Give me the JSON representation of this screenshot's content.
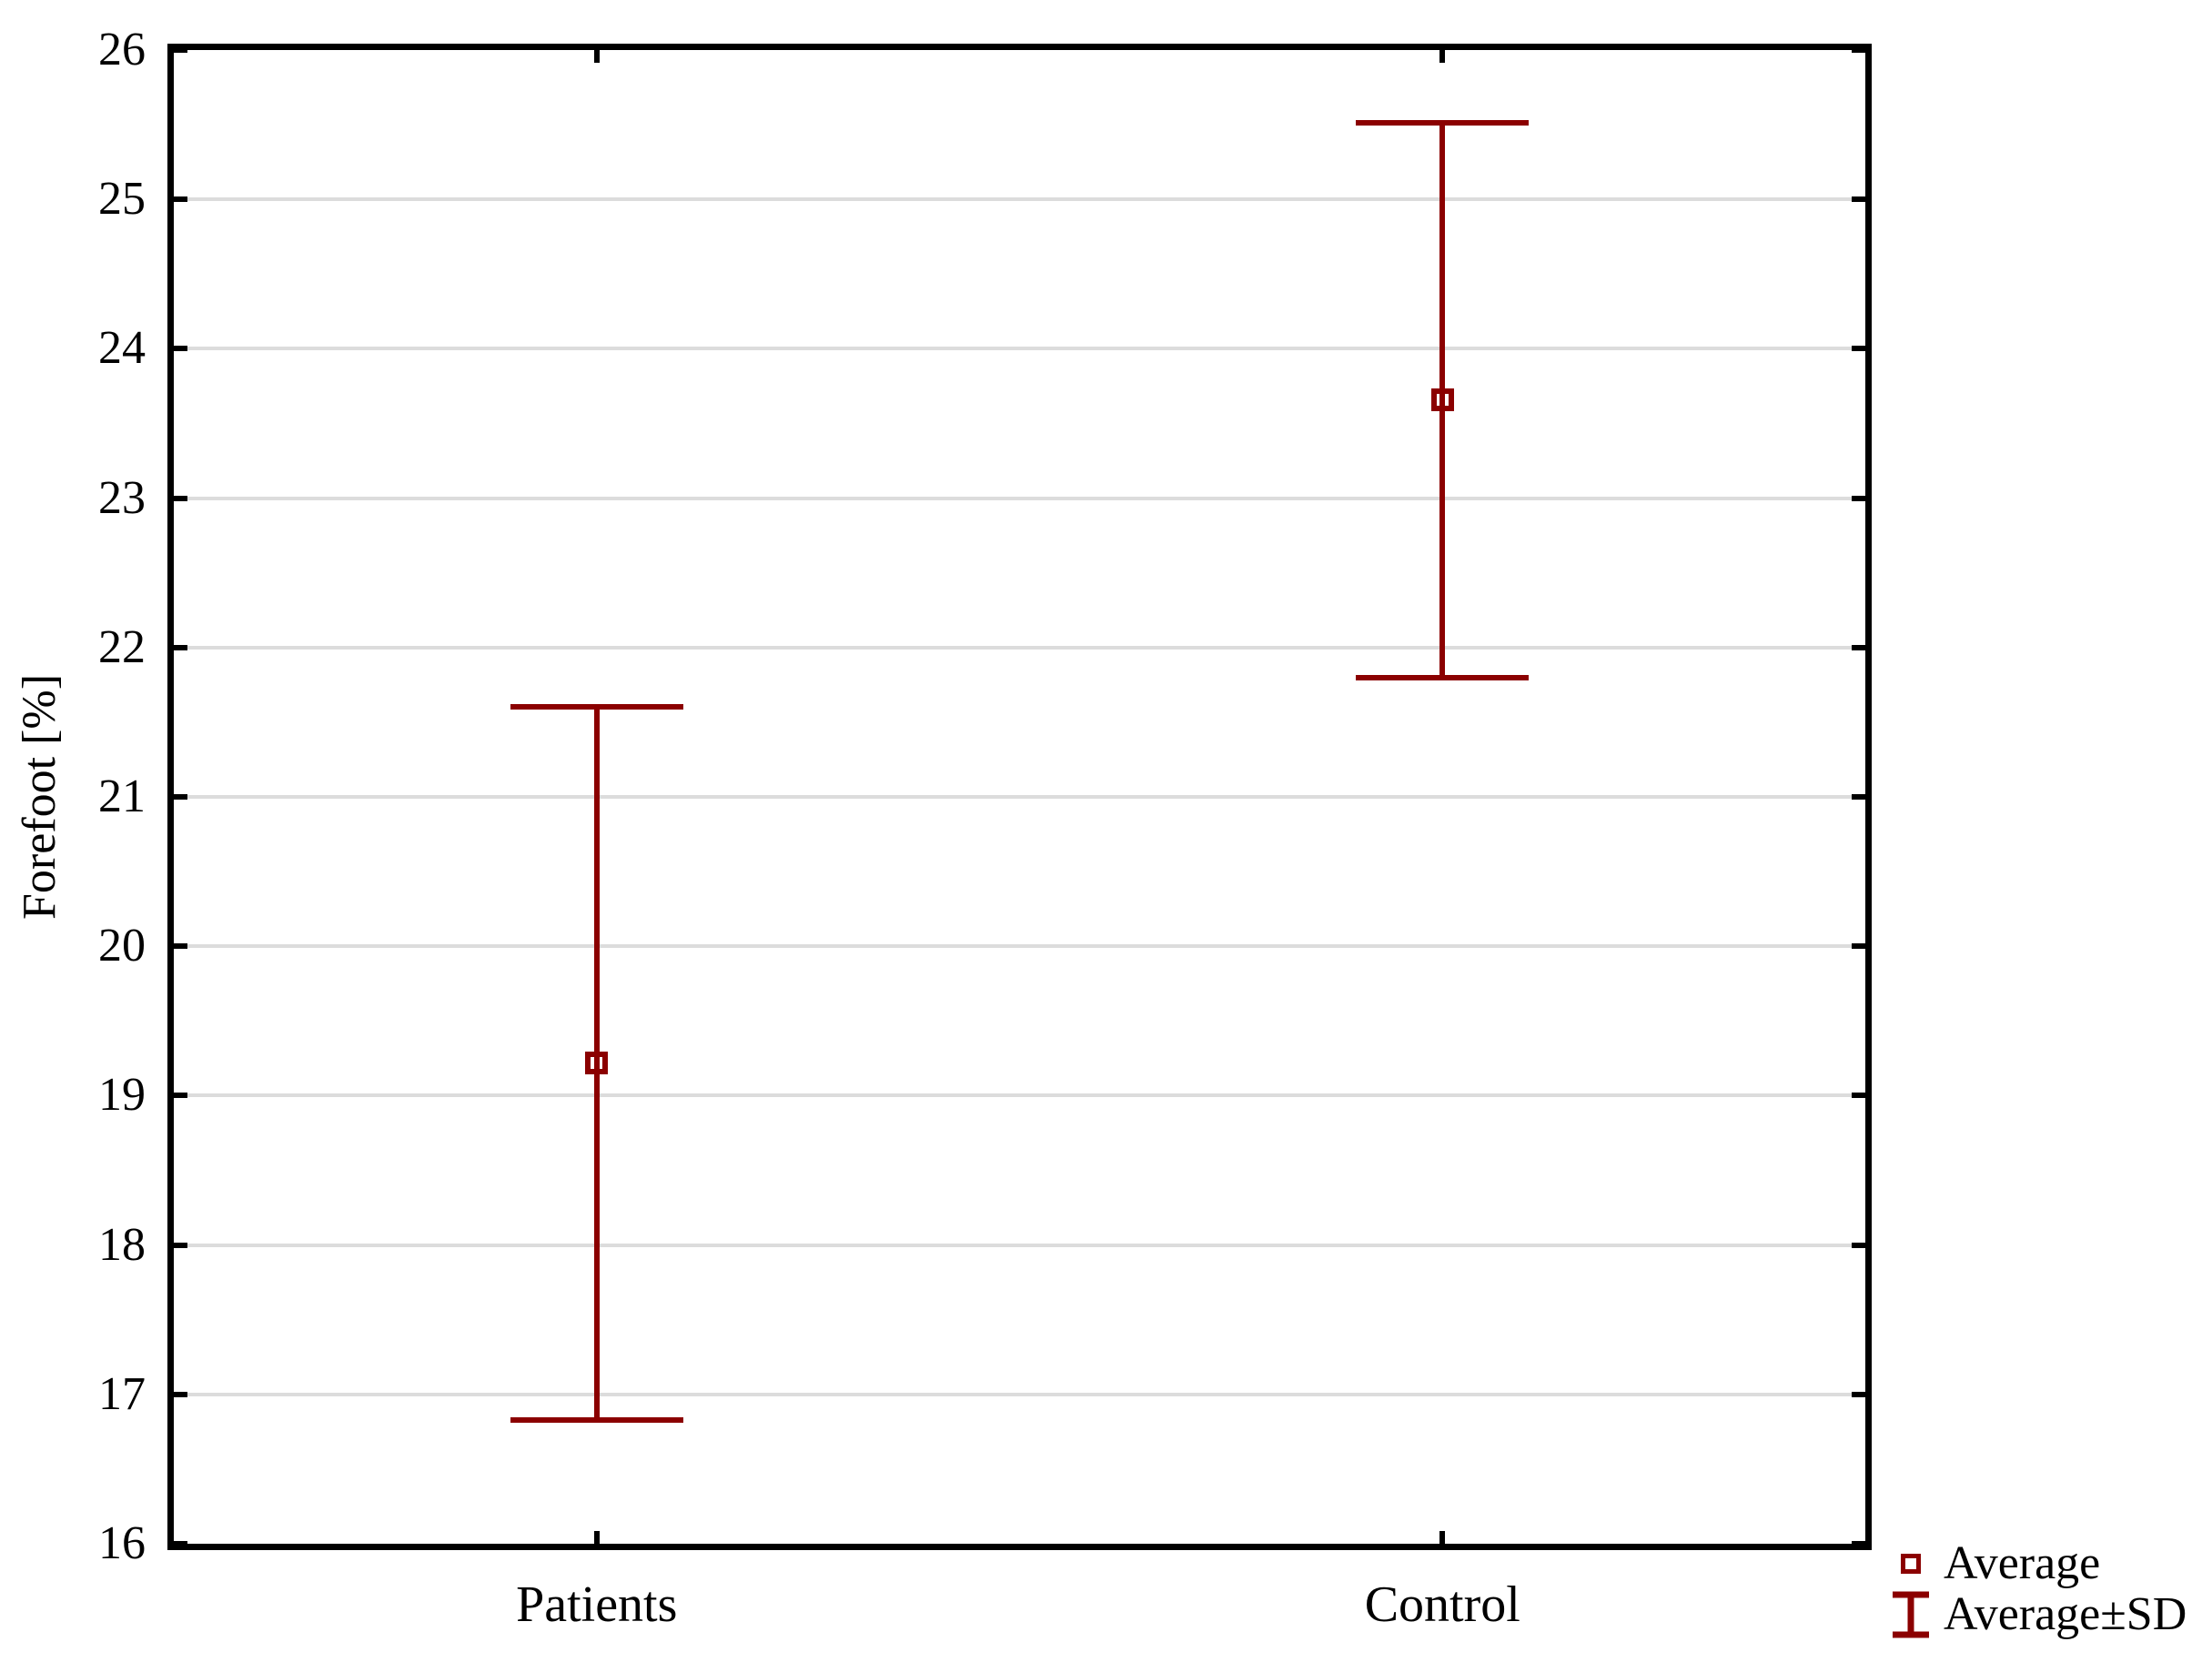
{
  "chart_data": {
    "type": "errorbar",
    "title": "",
    "ylabel": "Forefoot [%]",
    "categories": [
      "Patients",
      "Control"
    ],
    "series": [
      {
        "name": "Patients",
        "mean": 19.22,
        "sd": 2.39,
        "upper": 21.6,
        "lower": 16.83
      },
      {
        "name": "Control",
        "mean": 23.66,
        "sd": 1.85,
        "upper": 25.51,
        "lower": 21.8
      }
    ],
    "ylim": [
      16,
      26
    ],
    "yticks": [
      16,
      17,
      18,
      19,
      20,
      21,
      22,
      23,
      24,
      25,
      26
    ],
    "grid": "horizontal",
    "legend": {
      "position": "bottom-right",
      "items": [
        {
          "icon": "square-marker",
          "label": "Average"
        },
        {
          "icon": "errorbar-marker",
          "label": "Average±SD"
        }
      ]
    },
    "colors": {
      "series": "#8b0000",
      "axis": "#000000",
      "grid": "#dcdcdc",
      "background": "#ffffff"
    }
  }
}
